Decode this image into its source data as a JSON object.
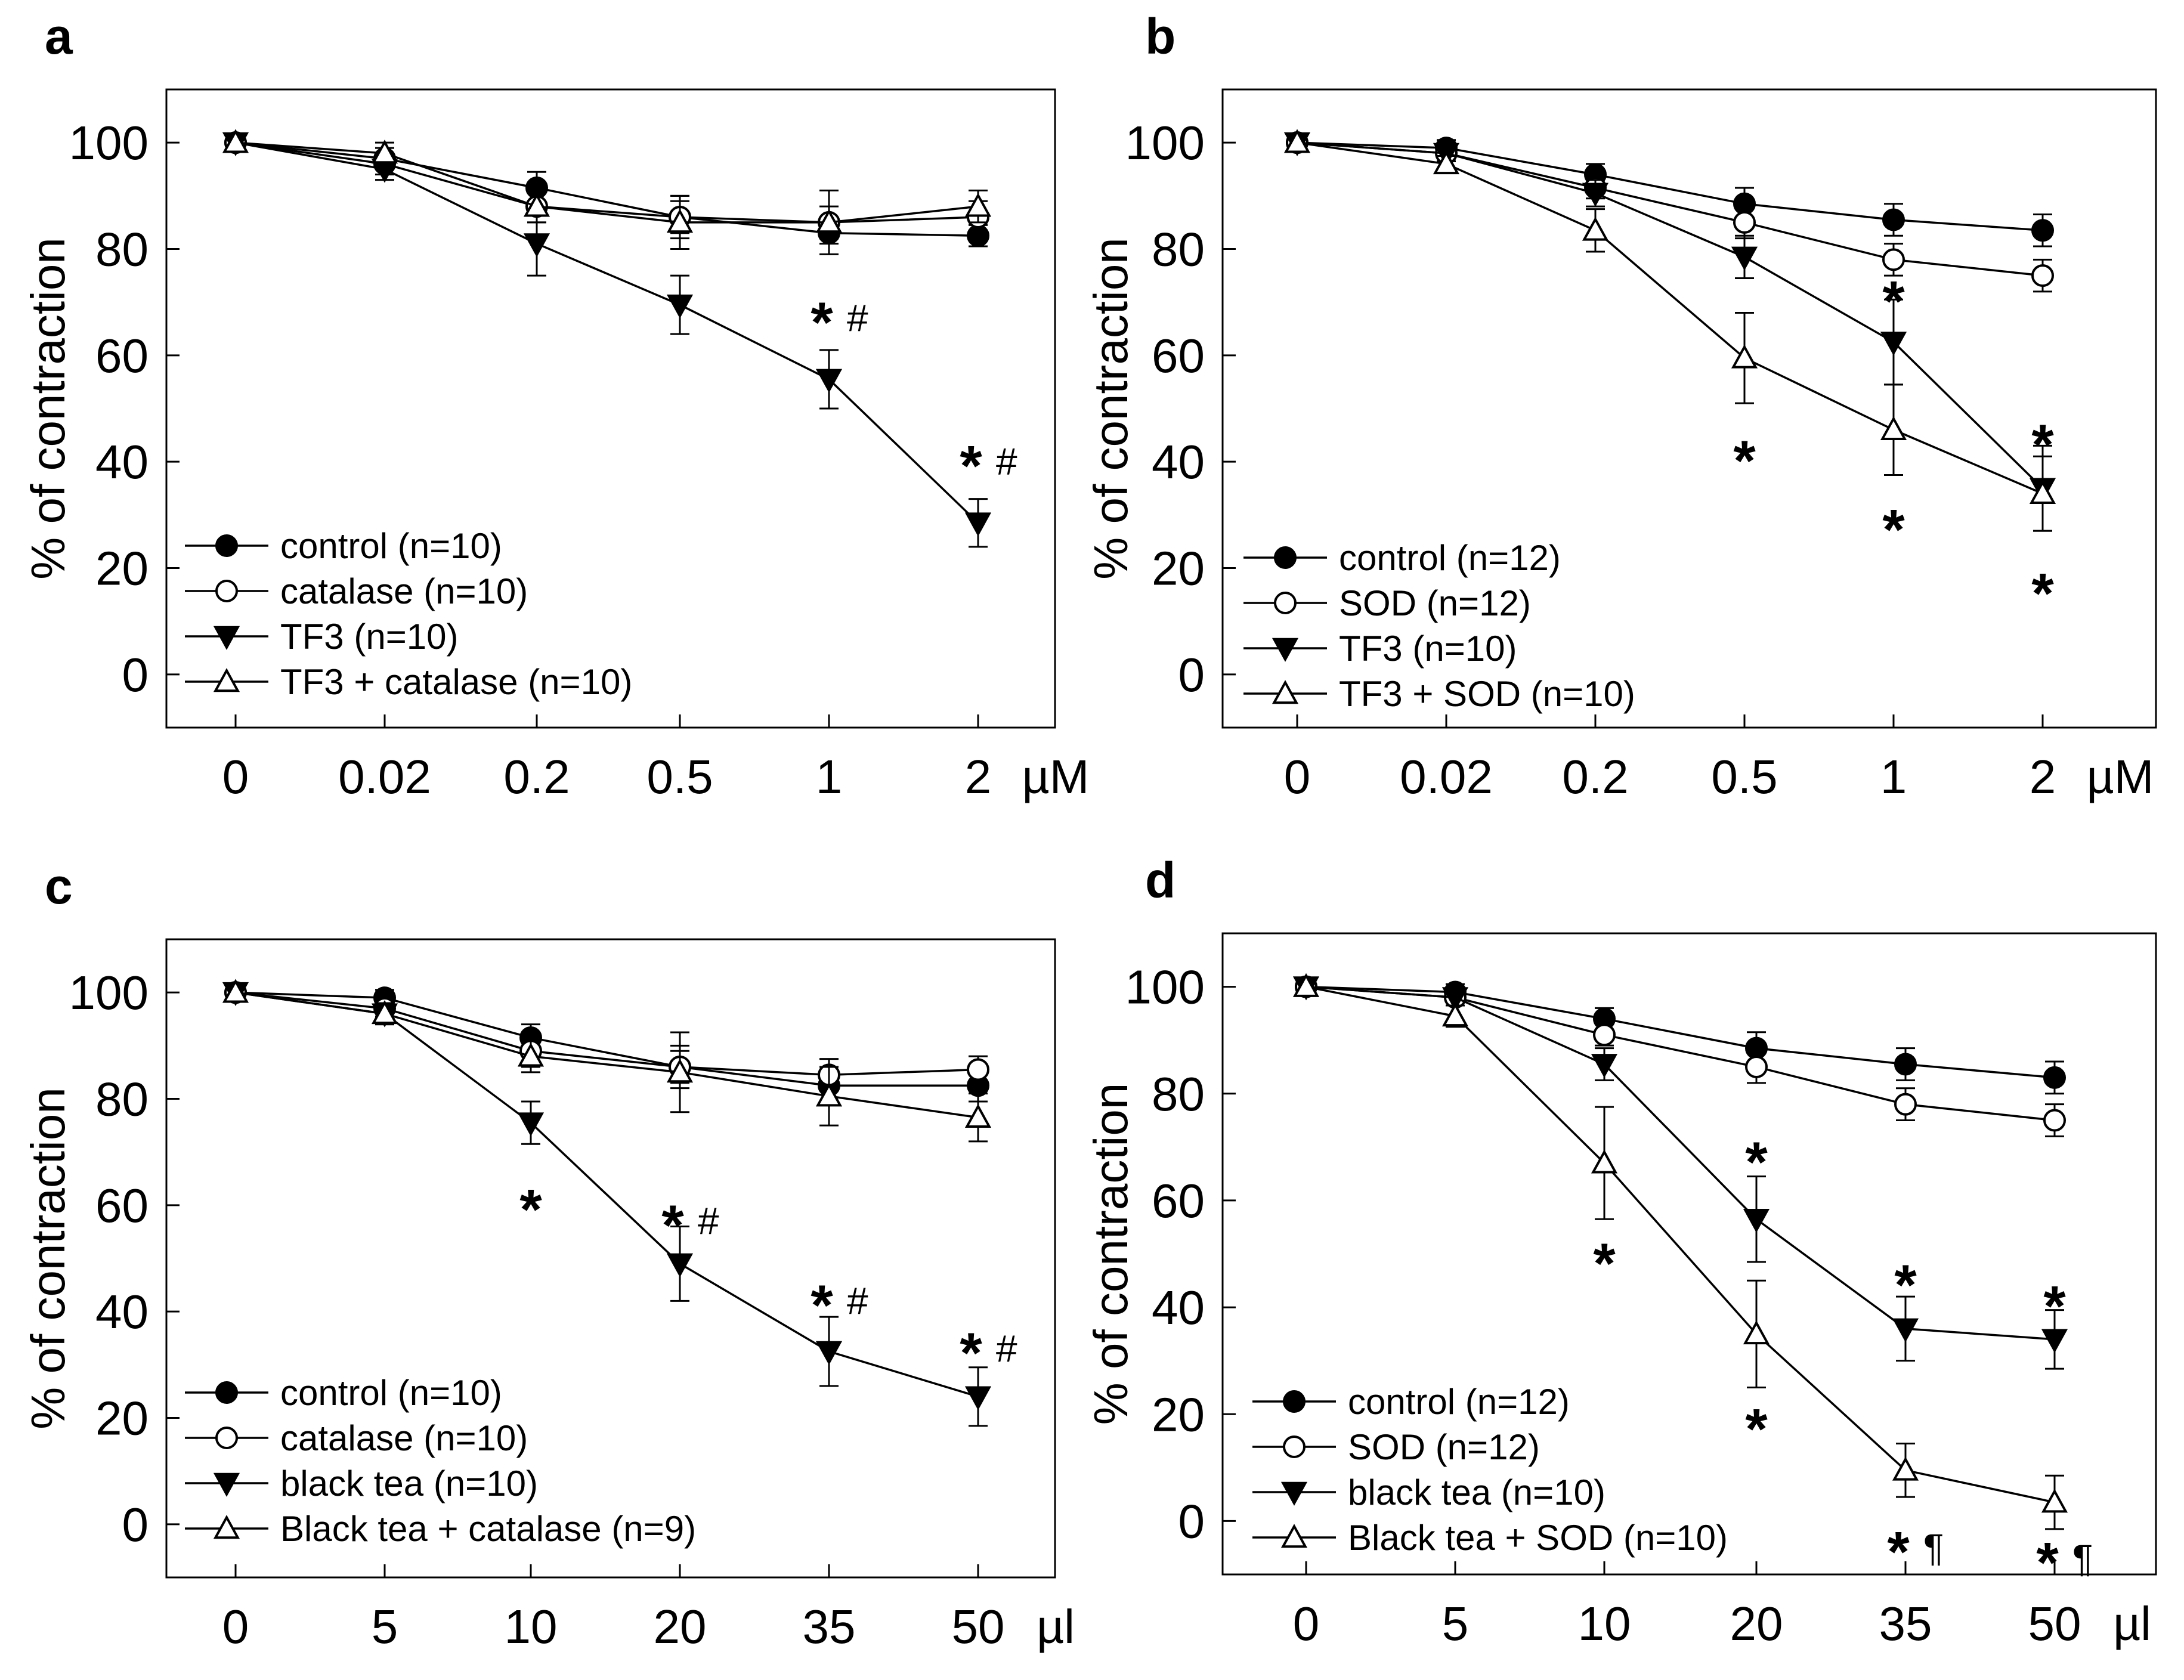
{
  "chart_data": [
    {
      "panel": "a",
      "type": "line",
      "xlabel": "µM",
      "ylabel": "% of contraction",
      "categories": [
        "0",
        "0.02",
        "0.2",
        "0.5",
        "1",
        "2"
      ],
      "yticks": [
        0,
        20,
        40,
        60,
        80,
        100
      ],
      "ylim": [
        -10,
        110
      ],
      "grid": false,
      "legend_position": "bottom-left",
      "series": [
        {
          "name": "control (n=10)",
          "marker": "filled-circle",
          "color": "#000000",
          "values": [
            100,
            97,
            91.5,
            86,
            83,
            82.5
          ],
          "errors": [
            0,
            2,
            3,
            3,
            2,
            2
          ]
        },
        {
          "name": "catalase (n=10)",
          "marker": "open-circle",
          "color": "#000000",
          "values": [
            100,
            96,
            88,
            86,
            85,
            86
          ],
          "errors": [
            0,
            2,
            3,
            4,
            3,
            3
          ]
        },
        {
          "name": "TF3 (n=10)",
          "marker": "filled-triangle-down",
          "color": "#000000",
          "values": [
            100,
            95,
            81,
            69.5,
            55.5,
            28.5
          ],
          "errors": [
            0,
            2,
            6,
            5.5,
            5.5,
            4.5
          ]
        },
        {
          "name": "TF3 + catalase (n=10)",
          "marker": "open-triangle-up",
          "color": "#000000",
          "values": [
            100,
            98,
            88,
            85,
            85,
            88
          ],
          "errors": [
            0,
            2,
            3,
            5,
            6,
            3
          ]
        }
      ],
      "annotations": [
        {
          "text": "*",
          "x": "1",
          "y": 67,
          "small": "#"
        },
        {
          "text": "*",
          "x": "2",
          "y": 40,
          "small": "#"
        }
      ]
    },
    {
      "panel": "b",
      "type": "line",
      "xlabel": "µM",
      "ylabel": "% of contraction",
      "categories": [
        "0",
        "0.02",
        "0.2",
        "0.5",
        "1",
        "2"
      ],
      "yticks": [
        0,
        20,
        40,
        60,
        80,
        100
      ],
      "ylim": [
        -10,
        110
      ],
      "grid": false,
      "legend_position": "bottom-left",
      "series": [
        {
          "name": "control (n=12)",
          "marker": "filled-circle",
          "color": "#000000",
          "values": [
            100,
            99,
            94,
            88.5,
            85.5,
            83.5
          ],
          "errors": [
            0,
            1.5,
            2,
            3,
            3,
            3
          ]
        },
        {
          "name": "SOD (n=12)",
          "marker": "open-circle",
          "color": "#000000",
          "values": [
            100,
            98,
            91.5,
            85,
            78,
            75
          ],
          "errors": [
            0,
            1.5,
            2,
            3,
            3,
            3
          ]
        },
        {
          "name": "TF3 (n=10)",
          "marker": "filled-triangle-down",
          "color": "#000000",
          "values": [
            100,
            98,
            90.5,
            78.5,
            62.5,
            35
          ],
          "errors": [
            0,
            1.5,
            2.5,
            4,
            8,
            8
          ]
        },
        {
          "name": "TF3 + SOD (n=10)",
          "marker": "open-triangle-up",
          "color": "#000000",
          "values": [
            100,
            96,
            83.5,
            59.5,
            46,
            34
          ],
          "errors": [
            0,
            1.5,
            4,
            8.5,
            8.5,
            7
          ]
        }
      ],
      "annotations": [
        {
          "text": "*",
          "x": "1",
          "y": 71
        },
        {
          "text": "*",
          "x": "2",
          "y": 44
        },
        {
          "text": "*",
          "x": "0.5",
          "y": 41
        },
        {
          "text": "*",
          "x": "1",
          "y": 28
        },
        {
          "text": "*",
          "x": "2",
          "y": 16
        }
      ]
    },
    {
      "panel": "c",
      "type": "line",
      "xlabel": "µl",
      "ylabel": "% of contraction",
      "categories": [
        "0",
        "5",
        "10",
        "20",
        "35",
        "50"
      ],
      "yticks": [
        0,
        20,
        40,
        60,
        80,
        100
      ],
      "ylim": [
        -10,
        110
      ],
      "grid": false,
      "legend_position": "bottom-left",
      "series": [
        {
          "name": "control (n=10)",
          "marker": "filled-circle",
          "color": "#000000",
          "values": [
            100,
            99,
            91.5,
            86,
            82.5,
            82.5
          ],
          "errors": [
            0,
            1.5,
            2.5,
            3,
            3,
            3
          ]
        },
        {
          "name": "catalase (n=10)",
          "marker": "open-circle",
          "color": "#000000",
          "values": [
            100,
            97,
            89,
            86,
            84.5,
            85.5
          ],
          "errors": [
            0,
            1.5,
            3,
            4,
            3,
            2.5
          ]
        },
        {
          "name": "black tea (n=10)",
          "marker": "filled-triangle-down",
          "color": "#000000",
          "values": [
            100,
            96,
            75.5,
            49,
            32.5,
            24
          ],
          "errors": [
            0,
            2,
            4,
            7,
            6.5,
            5.5
          ]
        },
        {
          "name": "Black tea + catalase (n=9)",
          "marker": "open-triangle-up",
          "color": "#000000",
          "values": [
            100,
            96,
            88,
            85,
            80.5,
            76.5
          ],
          "errors": [
            0,
            2,
            3,
            7.5,
            5.5,
            4.5
          ]
        }
      ],
      "annotations": [
        {
          "text": "*",
          "x": "10",
          "y": 60
        },
        {
          "text": "*",
          "x": "20",
          "y": 57,
          "small": "#"
        },
        {
          "text": "*",
          "x": "35",
          "y": 42,
          "small": "#"
        },
        {
          "text": "*",
          "x": "50",
          "y": 33,
          "small": "#"
        }
      ]
    },
    {
      "panel": "d",
      "type": "line",
      "xlabel": "µl",
      "ylabel": "% of contraction",
      "categories": [
        "0",
        "5",
        "10",
        "20",
        "35",
        "50"
      ],
      "yticks": [
        0,
        20,
        40,
        60,
        80,
        100
      ],
      "ylim": [
        -10,
        110
      ],
      "grid": false,
      "legend_position": "bottom-left",
      "series": [
        {
          "name": "control (n=12)",
          "marker": "filled-circle",
          "color": "#000000",
          "values": [
            100,
            99,
            94,
            88.5,
            85.5,
            83
          ],
          "errors": [
            0,
            1.5,
            2,
            3,
            3,
            3
          ]
        },
        {
          "name": "SOD (n=12)",
          "marker": "open-circle",
          "color": "#000000",
          "values": [
            100,
            98,
            91,
            85,
            78,
            75
          ],
          "errors": [
            0,
            1.5,
            2,
            3,
            3,
            3
          ]
        },
        {
          "name": "black tea (n=10)",
          "marker": "filled-triangle-down",
          "color": "#000000",
          "values": [
            100,
            98,
            85.5,
            56.5,
            36,
            34
          ],
          "errors": [
            0,
            1.5,
            3,
            8,
            6,
            5.5
          ]
        },
        {
          "name": "Black tea + SOD (n=10)",
          "marker": "open-triangle-up",
          "color": "#000000",
          "values": [
            100,
            94.5,
            67,
            35,
            9.5,
            3.5
          ],
          "errors": [
            0,
            2,
            10.5,
            10,
            5,
            5
          ]
        }
      ],
      "annotations": [
        {
          "text": "*",
          "x": "20",
          "y": 68
        },
        {
          "text": "*",
          "x": "10",
          "y": 49
        },
        {
          "text": "*",
          "x": "35",
          "y": 45
        },
        {
          "text": "*",
          "x": "50",
          "y": 41
        },
        {
          "text": "*",
          "x": "20",
          "y": 18
        },
        {
          "text": "*",
          "x": "35",
          "y": -5,
          "small": "¶"
        },
        {
          "text": "*",
          "x": "50",
          "y": -7,
          "small": "¶"
        }
      ]
    }
  ]
}
